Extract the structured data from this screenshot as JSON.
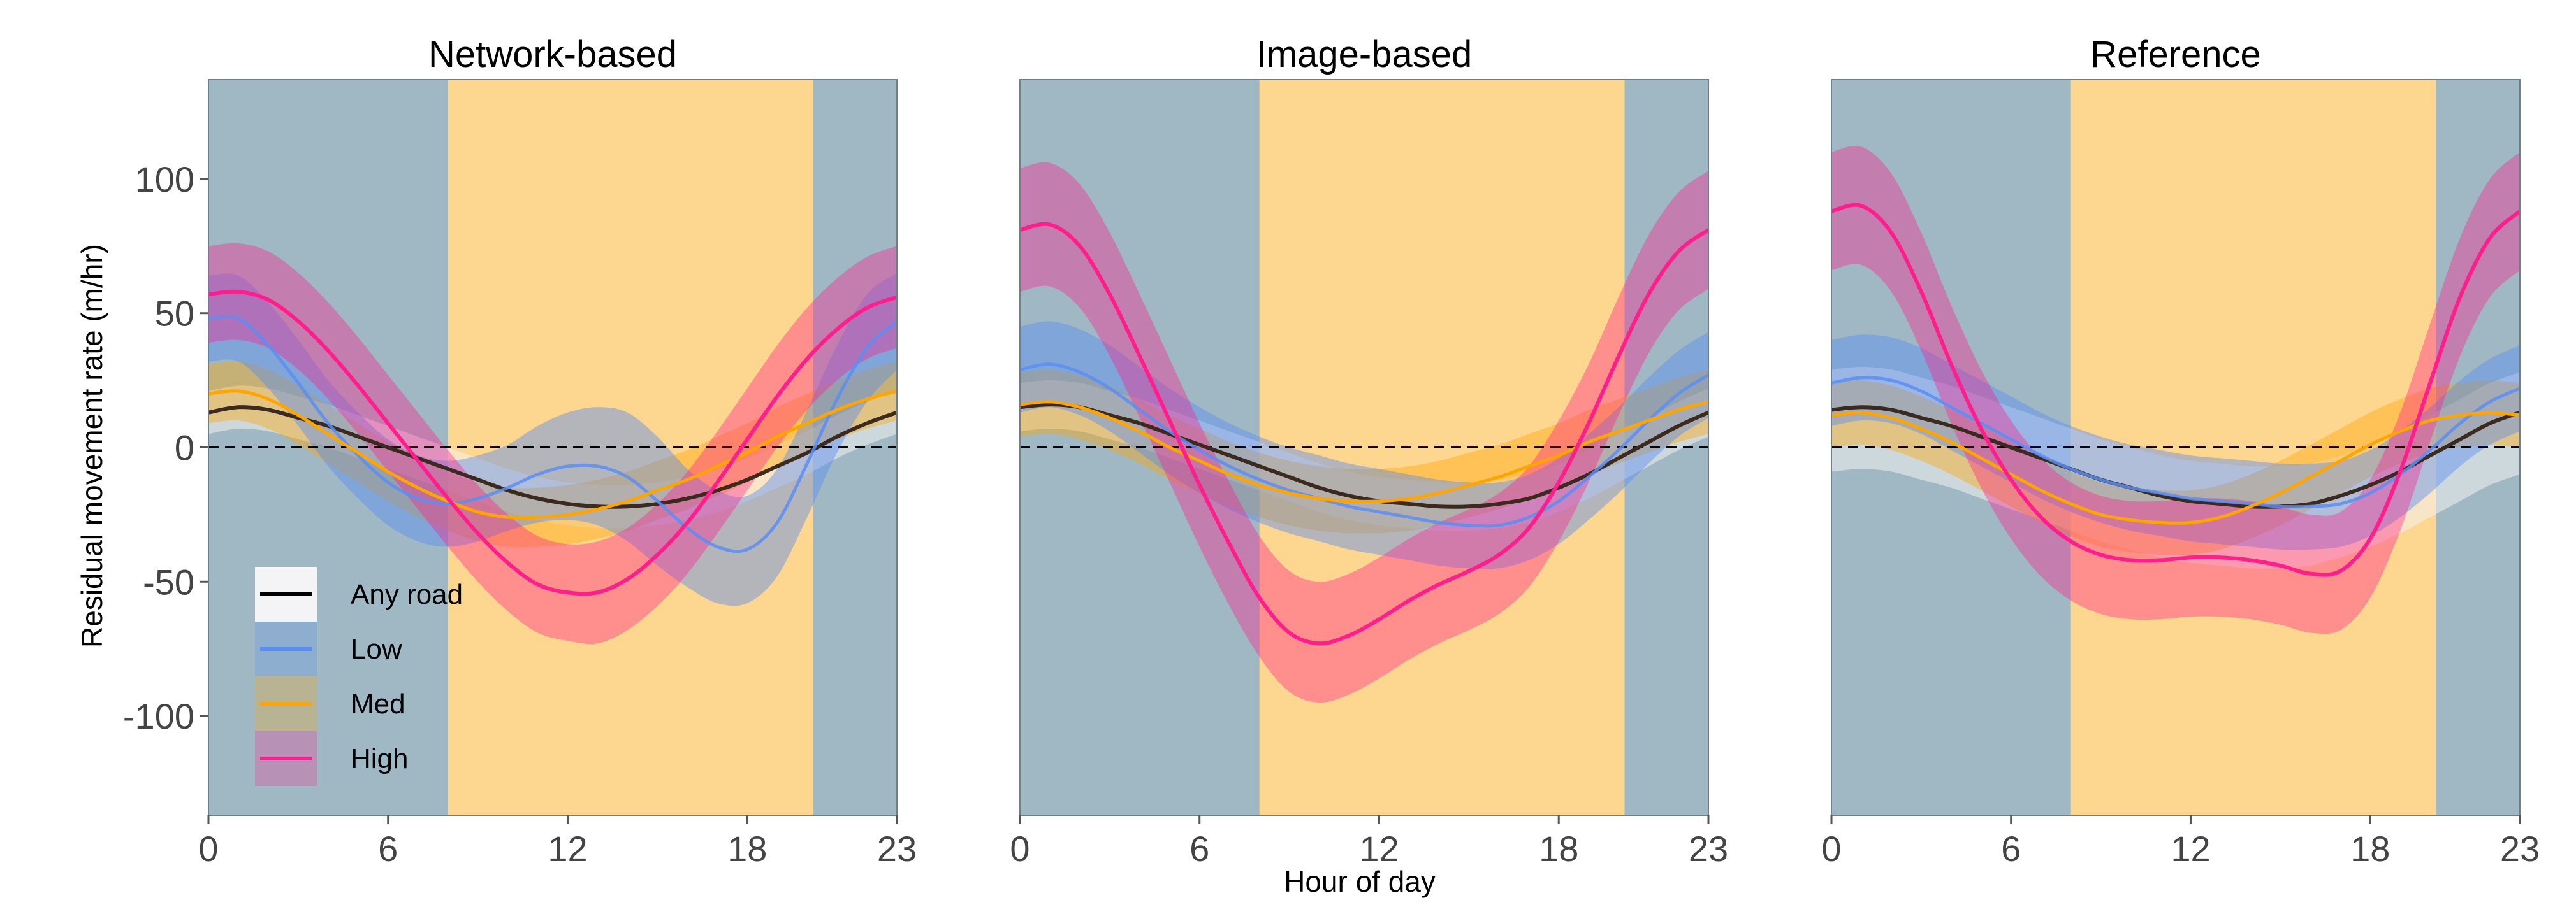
{
  "figure": {
    "ylabel": "Residual movement rate (m/hr)",
    "xlabel": "Hour of day"
  },
  "colors": {
    "night": "#9fb8c4",
    "day": "#fdd68f",
    "any_road": "#000000",
    "low": "#5b8ef2",
    "med": "#ffa500",
    "high": "#ff1e8c"
  },
  "legend": {
    "items": [
      {
        "key": "any_road",
        "label": "Any road"
      },
      {
        "key": "low",
        "label": "Low"
      },
      {
        "key": "med",
        "label": "Med"
      },
      {
        "key": "high",
        "label": "High"
      }
    ]
  },
  "chart_data": [
    {
      "type": "line",
      "title": "Network-based",
      "xlim": [
        0,
        23
      ],
      "ylim": [
        -137,
        137
      ],
      "xticks": [
        0,
        6,
        12,
        18,
        23
      ],
      "yticks": [
        100,
        50,
        0,
        -50,
        -100
      ],
      "reference_line_y": 0,
      "day_period": [
        8,
        20.2
      ],
      "x": [
        0,
        1,
        2,
        3,
        4,
        5,
        6,
        7,
        8,
        9,
        10,
        11,
        12,
        13,
        14,
        15,
        16,
        17,
        18,
        19,
        20,
        21,
        22,
        23
      ],
      "series": [
        {
          "name": "Any road",
          "key": "any_road",
          "values": [
            13,
            15,
            14,
            11,
            8,
            4,
            0,
            -4,
            -8,
            -12,
            -16,
            -19,
            -21,
            -22,
            -22,
            -21,
            -19,
            -16,
            -12,
            -7,
            -2,
            4,
            9,
            13
          ],
          "lower": [
            5,
            7,
            6,
            3,
            0,
            -4,
            -8,
            -12,
            -16,
            -20,
            -24,
            -27,
            -29,
            -30,
            -30,
            -29,
            -27,
            -24,
            -20,
            -15,
            -10,
            -4,
            1,
            5
          ],
          "upper": [
            21,
            23,
            22,
            19,
            16,
            12,
            8,
            4,
            0,
            -4,
            -8,
            -11,
            -13,
            -14,
            -14,
            -13,
            -11,
            -8,
            -4,
            1,
            6,
            12,
            17,
            21
          ]
        },
        {
          "name": "Low",
          "key": "low",
          "values": [
            48,
            48,
            38,
            24,
            9,
            -3,
            -13,
            -19,
            -21,
            -19,
            -15,
            -10,
            -7,
            -7,
            -11,
            -20,
            -30,
            -37,
            -38,
            -28,
            -6,
            18,
            37,
            47
          ],
          "lower": [
            32,
            32,
            22,
            8,
            -7,
            -19,
            -29,
            -35,
            -37,
            -35,
            -31,
            -28,
            -27,
            -29,
            -35,
            -44,
            -52,
            -58,
            -58,
            -48,
            -26,
            -2,
            17,
            29
          ],
          "upper": [
            64,
            64,
            54,
            40,
            25,
            13,
            3,
            -3,
            -5,
            -3,
            1,
            8,
            13,
            15,
            13,
            4,
            -8,
            -16,
            -18,
            -8,
            14,
            38,
            57,
            65
          ]
        },
        {
          "name": "Med",
          "key": "med",
          "values": [
            20,
            21,
            18,
            12,
            5,
            -2,
            -9,
            -15,
            -20,
            -24,
            -26,
            -26,
            -25,
            -23,
            -20,
            -16,
            -12,
            -7,
            -2,
            4,
            9,
            14,
            18,
            21
          ],
          "lower": [
            9,
            10,
            7,
            1,
            -6,
            -13,
            -20,
            -26,
            -31,
            -35,
            -37,
            -37,
            -36,
            -34,
            -31,
            -27,
            -23,
            -18,
            -13,
            -7,
            -2,
            3,
            7,
            10
          ],
          "upper": [
            31,
            32,
            29,
            23,
            16,
            9,
            2,
            -4,
            -9,
            -13,
            -15,
            -15,
            -14,
            -12,
            -9,
            -5,
            -1,
            4,
            9,
            15,
            20,
            25,
            29,
            32
          ]
        },
        {
          "name": "High",
          "key": "high",
          "values": [
            57,
            58,
            55,
            47,
            36,
            23,
            9,
            -5,
            -19,
            -32,
            -43,
            -51,
            -54,
            -54,
            -49,
            -40,
            -28,
            -13,
            3,
            19,
            33,
            44,
            52,
            56
          ],
          "lower": [
            39,
            40,
            37,
            29,
            18,
            5,
            -9,
            -23,
            -37,
            -50,
            -61,
            -69,
            -72,
            -73,
            -68,
            -59,
            -47,
            -32,
            -16,
            0,
            14,
            25,
            33,
            37
          ],
          "upper": [
            75,
            76,
            73,
            65,
            54,
            41,
            27,
            13,
            -1,
            -14,
            -25,
            -33,
            -36,
            -35,
            -30,
            -21,
            -9,
            6,
            22,
            38,
            52,
            63,
            71,
            75
          ]
        }
      ]
    },
    {
      "type": "line",
      "title": "Image-based",
      "xlim": [
        0,
        23
      ],
      "ylim": [
        -137,
        137
      ],
      "xticks": [
        0,
        6,
        12,
        18,
        23
      ],
      "yticks": [
        100,
        50,
        0,
        -50,
        -100
      ],
      "reference_line_y": 0,
      "day_period": [
        8,
        20.2
      ],
      "x": [
        0,
        1,
        2,
        3,
        4,
        5,
        6,
        7,
        8,
        9,
        10,
        11,
        12,
        13,
        14,
        15,
        16,
        17,
        18,
        19,
        20,
        21,
        22,
        23
      ],
      "series": [
        {
          "name": "Any road",
          "key": "any_road",
          "values": [
            15,
            16,
            15,
            12,
            9,
            5,
            1,
            -3,
            -7,
            -11,
            -15,
            -18,
            -20,
            -21,
            -22,
            -22,
            -21,
            -19,
            -15,
            -10,
            -4,
            2,
            8,
            13
          ],
          "lower": [
            6,
            7,
            6,
            3,
            0,
            -4,
            -8,
            -12,
            -16,
            -20,
            -24,
            -27,
            -29,
            -30,
            -31,
            -31,
            -30,
            -28,
            -24,
            -19,
            -13,
            -7,
            -1,
            4
          ],
          "upper": [
            24,
            25,
            24,
            21,
            18,
            14,
            10,
            6,
            2,
            -2,
            -6,
            -9,
            -11,
            -12,
            -13,
            -13,
            -12,
            -10,
            -6,
            -1,
            5,
            11,
            17,
            22
          ]
        },
        {
          "name": "Low",
          "key": "low",
          "values": [
            29,
            31,
            28,
            22,
            14,
            6,
            -1,
            -7,
            -12,
            -16,
            -19,
            -22,
            -24,
            -26,
            -28,
            -29,
            -29,
            -26,
            -20,
            -11,
            -1,
            10,
            20,
            27
          ],
          "lower": [
            13,
            15,
            12,
            6,
            -2,
            -10,
            -17,
            -23,
            -28,
            -32,
            -35,
            -38,
            -40,
            -42,
            -44,
            -45,
            -45,
            -42,
            -36,
            -27,
            -17,
            -6,
            4,
            11
          ],
          "upper": [
            45,
            47,
            44,
            38,
            30,
            22,
            15,
            9,
            4,
            0,
            -3,
            -6,
            -8,
            -10,
            -12,
            -13,
            -13,
            -10,
            -4,
            5,
            15,
            26,
            36,
            43
          ]
        },
        {
          "name": "Med",
          "key": "med",
          "values": [
            16,
            17,
            15,
            11,
            6,
            0,
            -5,
            -10,
            -14,
            -17,
            -19,
            -20,
            -20,
            -19,
            -17,
            -14,
            -11,
            -7,
            -3,
            2,
            6,
            10,
            14,
            17
          ],
          "lower": [
            4,
            5,
            3,
            -1,
            -6,
            -12,
            -17,
            -22,
            -26,
            -29,
            -31,
            -32,
            -32,
            -31,
            -29,
            -26,
            -23,
            -19,
            -15,
            -10,
            -6,
            -2,
            2,
            5
          ],
          "upper": [
            28,
            29,
            27,
            23,
            18,
            12,
            7,
            2,
            -2,
            -5,
            -7,
            -8,
            -8,
            -7,
            -5,
            -2,
            1,
            5,
            9,
            14,
            18,
            22,
            26,
            29
          ]
        },
        {
          "name": "High",
          "key": "high",
          "values": [
            81,
            83,
            75,
            57,
            34,
            10,
            -14,
            -36,
            -56,
            -69,
            -73,
            -70,
            -64,
            -57,
            -51,
            -46,
            -40,
            -30,
            -13,
            9,
            34,
            57,
            73,
            81
          ],
          "lower": [
            58,
            60,
            52,
            34,
            11,
            -13,
            -37,
            -59,
            -78,
            -91,
            -95,
            -92,
            -86,
            -79,
            -73,
            -68,
            -62,
            -52,
            -35,
            -13,
            12,
            35,
            51,
            59
          ],
          "upper": [
            104,
            106,
            98,
            80,
            57,
            33,
            9,
            -13,
            -33,
            -46,
            -50,
            -47,
            -41,
            -34,
            -28,
            -23,
            -17,
            -7,
            10,
            31,
            56,
            79,
            95,
            103
          ]
        }
      ]
    },
    {
      "type": "line",
      "title": "Reference",
      "xlim": [
        0,
        23
      ],
      "ylim": [
        -137,
        137
      ],
      "xticks": [
        0,
        6,
        12,
        18,
        23
      ],
      "yticks": [
        100,
        50,
        0,
        -50,
        -100
      ],
      "reference_line_y": 0,
      "day_period": [
        8,
        20.2
      ],
      "x": [
        0,
        1,
        2,
        3,
        4,
        5,
        6,
        7,
        8,
        9,
        10,
        11,
        12,
        13,
        14,
        15,
        16,
        17,
        18,
        19,
        20,
        21,
        22,
        23
      ],
      "series": [
        {
          "name": "Any road",
          "key": "any_road",
          "values": [
            14,
            15,
            14,
            11,
            8,
            4,
            0,
            -4,
            -8,
            -12,
            -15,
            -18,
            -20,
            -21,
            -22,
            -22,
            -21,
            -18,
            -14,
            -9,
            -3,
            3,
            9,
            13
          ],
          "lower": [
            -9,
            -8,
            -9,
            -12,
            -15,
            -19,
            -23,
            -27,
            -31,
            -35,
            -38,
            -41,
            -43,
            -44,
            -45,
            -45,
            -44,
            -41,
            -37,
            -32,
            -26,
            -20,
            -14,
            -10
          ],
          "upper": [
            29,
            30,
            29,
            26,
            23,
            19,
            15,
            11,
            7,
            3,
            0,
            -3,
            -5,
            -6,
            -7,
            -7,
            -6,
            -3,
            1,
            6,
            12,
            18,
            24,
            28
          ]
        },
        {
          "name": "Low",
          "key": "low",
          "values": [
            24,
            26,
            25,
            21,
            15,
            9,
            3,
            -3,
            -8,
            -12,
            -15,
            -17,
            -19,
            -20,
            -21,
            -22,
            -22,
            -21,
            -17,
            -10,
            -1,
            9,
            17,
            22
          ],
          "lower": [
            8,
            10,
            9,
            5,
            -1,
            -7,
            -13,
            -19,
            -24,
            -28,
            -31,
            -33,
            -35,
            -36,
            -37,
            -38,
            -38,
            -37,
            -33,
            -26,
            -17,
            -7,
            1,
            6
          ],
          "upper": [
            40,
            42,
            41,
            37,
            31,
            25,
            19,
            13,
            8,
            4,
            1,
            -1,
            -3,
            -4,
            -5,
            -6,
            -6,
            -5,
            -1,
            6,
            15,
            25,
            33,
            38
          ]
        },
        {
          "name": "Med",
          "key": "med",
          "values": [
            12,
            13,
            11,
            7,
            2,
            -4,
            -10,
            -16,
            -21,
            -25,
            -27,
            -28,
            -28,
            -26,
            -22,
            -17,
            -11,
            -5,
            1,
            6,
            10,
            12,
            13,
            12
          ],
          "lower": [
            0,
            1,
            -1,
            -5,
            -10,
            -16,
            -22,
            -28,
            -33,
            -37,
            -39,
            -40,
            -40,
            -38,
            -34,
            -29,
            -23,
            -17,
            -11,
            -6,
            -2,
            0,
            1,
            0
          ],
          "upper": [
            24,
            25,
            23,
            19,
            14,
            8,
            2,
            -4,
            -9,
            -13,
            -15,
            -16,
            -16,
            -14,
            -10,
            -5,
            1,
            7,
            13,
            18,
            22,
            24,
            25,
            24
          ]
        },
        {
          "name": "High",
          "key": "high",
          "values": [
            88,
            90,
            80,
            58,
            31,
            7,
            -12,
            -26,
            -35,
            -40,
            -42,
            -42,
            -41,
            -41,
            -42,
            -44,
            -47,
            -46,
            -34,
            -9,
            24,
            56,
            78,
            88
          ],
          "lower": [
            66,
            68,
            58,
            36,
            9,
            -15,
            -34,
            -48,
            -57,
            -62,
            -64,
            -64,
            -63,
            -63,
            -64,
            -66,
            -69,
            -68,
            -56,
            -31,
            2,
            34,
            56,
            66
          ],
          "upper": [
            110,
            112,
            102,
            80,
            53,
            29,
            10,
            -4,
            -13,
            -18,
            -20,
            -20,
            -19,
            -19,
            -20,
            -22,
            -25,
            -24,
            -12,
            13,
            46,
            78,
            100,
            110
          ]
        }
      ]
    }
  ]
}
